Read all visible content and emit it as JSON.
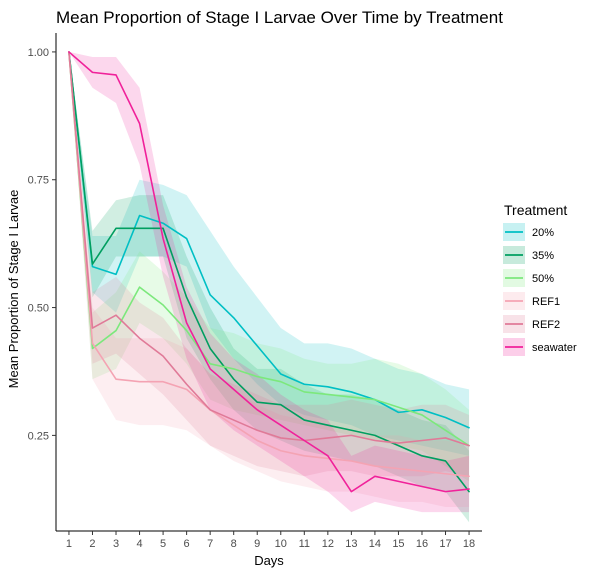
{
  "chart_data": {
    "type": "line",
    "title": "Mean Proportion of Stage I Larvae Over Time by Treatment",
    "xlabel": "Days",
    "ylabel": "Mean Proportion of Stage I Larvae",
    "x": [
      1,
      2,
      3,
      4,
      5,
      6,
      7,
      8,
      9,
      10,
      11,
      12,
      13,
      14,
      15,
      16,
      17,
      18
    ],
    "x_ticks": [
      "1",
      "2",
      "3",
      "4",
      "5",
      "6",
      "7",
      "8",
      "9",
      "10",
      "11",
      "12",
      "13",
      "14",
      "15",
      "16",
      "17",
      "18"
    ],
    "y_ticks": [
      "0.25",
      "0.50",
      "0.75",
      "1.00"
    ],
    "y_tick_values": [
      0.25,
      0.5,
      0.75,
      1.0
    ],
    "xlim": [
      0.45,
      18.55
    ],
    "ylim": [
      0.063,
      1.037
    ],
    "grid": false,
    "legend": {
      "title": "Treatment",
      "placement": "right"
    },
    "series": [
      {
        "name": "20%",
        "color": "#00BFC4",
        "values": [
          1.0,
          0.58,
          0.565,
          0.68,
          0.665,
          0.635,
          0.525,
          0.48,
          0.425,
          0.37,
          0.35,
          0.345,
          0.335,
          0.32,
          0.295,
          0.3,
          0.285,
          0.265
        ],
        "lower": [
          1.0,
          0.53,
          0.49,
          0.6,
          0.6,
          0.58,
          0.46,
          0.4,
          0.35,
          0.31,
          0.29,
          0.28,
          0.27,
          0.25,
          0.24,
          0.23,
          0.22,
          0.21
        ],
        "upper": [
          1.0,
          0.64,
          0.64,
          0.75,
          0.74,
          0.72,
          0.65,
          0.58,
          0.52,
          0.46,
          0.43,
          0.43,
          0.42,
          0.4,
          0.38,
          0.37,
          0.35,
          0.34
        ]
      },
      {
        "name": "35%",
        "color": "#009E60",
        "values": [
          1.0,
          0.585,
          0.655,
          0.655,
          0.655,
          0.52,
          0.42,
          0.36,
          0.315,
          0.31,
          0.28,
          0.27,
          0.26,
          0.25,
          0.23,
          0.21,
          0.2,
          0.14
        ],
        "lower": [
          1.0,
          0.52,
          0.6,
          0.6,
          0.6,
          0.44,
          0.36,
          0.3,
          0.26,
          0.24,
          0.22,
          0.21,
          0.2,
          0.19,
          0.17,
          0.15,
          0.14,
          0.08
        ],
        "upper": [
          1.0,
          0.65,
          0.71,
          0.72,
          0.72,
          0.6,
          0.5,
          0.42,
          0.38,
          0.38,
          0.35,
          0.33,
          0.33,
          0.32,
          0.3,
          0.28,
          0.27,
          0.22
        ]
      },
      {
        "name": "50%",
        "color": "#7CE87C",
        "values": [
          1.0,
          0.42,
          0.455,
          0.54,
          0.505,
          0.455,
          0.39,
          0.38,
          0.365,
          0.355,
          0.335,
          0.33,
          0.325,
          0.32,
          0.305,
          0.29,
          0.26,
          0.23
        ],
        "lower": [
          1.0,
          0.36,
          0.38,
          0.47,
          0.44,
          0.39,
          0.32,
          0.3,
          0.29,
          0.28,
          0.27,
          0.26,
          0.25,
          0.24,
          0.23,
          0.22,
          0.19,
          0.16
        ],
        "upper": [
          1.0,
          0.49,
          0.53,
          0.61,
          0.57,
          0.52,
          0.46,
          0.45,
          0.43,
          0.42,
          0.4,
          0.39,
          0.39,
          0.4,
          0.39,
          0.37,
          0.34,
          0.3
        ]
      },
      {
        "name": "REF1",
        "color": "#F4A3B3",
        "values": [
          1.0,
          0.43,
          0.36,
          0.355,
          0.355,
          0.34,
          0.3,
          0.27,
          0.24,
          0.22,
          0.21,
          0.205,
          0.2,
          0.19,
          0.185,
          0.18,
          0.175,
          0.17
        ],
        "lower": [
          1.0,
          0.36,
          0.28,
          0.27,
          0.27,
          0.26,
          0.23,
          0.2,
          0.18,
          0.16,
          0.15,
          0.14,
          0.14,
          0.13,
          0.12,
          0.12,
          0.11,
          0.11
        ],
        "upper": [
          1.0,
          0.5,
          0.44,
          0.44,
          0.44,
          0.42,
          0.37,
          0.34,
          0.31,
          0.29,
          0.28,
          0.27,
          0.26,
          0.25,
          0.25,
          0.24,
          0.24,
          0.23
        ]
      },
      {
        "name": "REF2",
        "color": "#E07A98",
        "values": [
          1.0,
          0.46,
          0.485,
          0.44,
          0.405,
          0.35,
          0.3,
          0.28,
          0.26,
          0.245,
          0.24,
          0.245,
          0.25,
          0.24,
          0.235,
          0.24,
          0.245,
          0.23
        ],
        "lower": [
          1.0,
          0.39,
          0.41,
          0.37,
          0.33,
          0.28,
          0.23,
          0.21,
          0.19,
          0.18,
          0.17,
          0.18,
          0.18,
          0.17,
          0.17,
          0.17,
          0.18,
          0.17
        ],
        "upper": [
          1.0,
          0.53,
          0.56,
          0.51,
          0.48,
          0.42,
          0.37,
          0.35,
          0.33,
          0.31,
          0.31,
          0.31,
          0.32,
          0.31,
          0.3,
          0.31,
          0.31,
          0.29
        ]
      },
      {
        "name": "seawater",
        "color": "#F0219A",
        "values": [
          1.0,
          0.96,
          0.955,
          0.86,
          0.635,
          0.47,
          0.38,
          0.34,
          0.3,
          0.27,
          0.24,
          0.21,
          0.14,
          0.17,
          0.16,
          0.15,
          0.14,
          0.145
        ],
        "lower": [
          1.0,
          0.93,
          0.9,
          0.78,
          0.56,
          0.4,
          0.3,
          0.26,
          0.23,
          0.2,
          0.17,
          0.14,
          0.1,
          0.12,
          0.11,
          0.1,
          0.1,
          0.1
        ],
        "upper": [
          1.0,
          0.99,
          0.99,
          0.93,
          0.7,
          0.54,
          0.45,
          0.4,
          0.37,
          0.33,
          0.3,
          0.28,
          0.21,
          0.23,
          0.22,
          0.21,
          0.2,
          0.21
        ]
      }
    ]
  }
}
